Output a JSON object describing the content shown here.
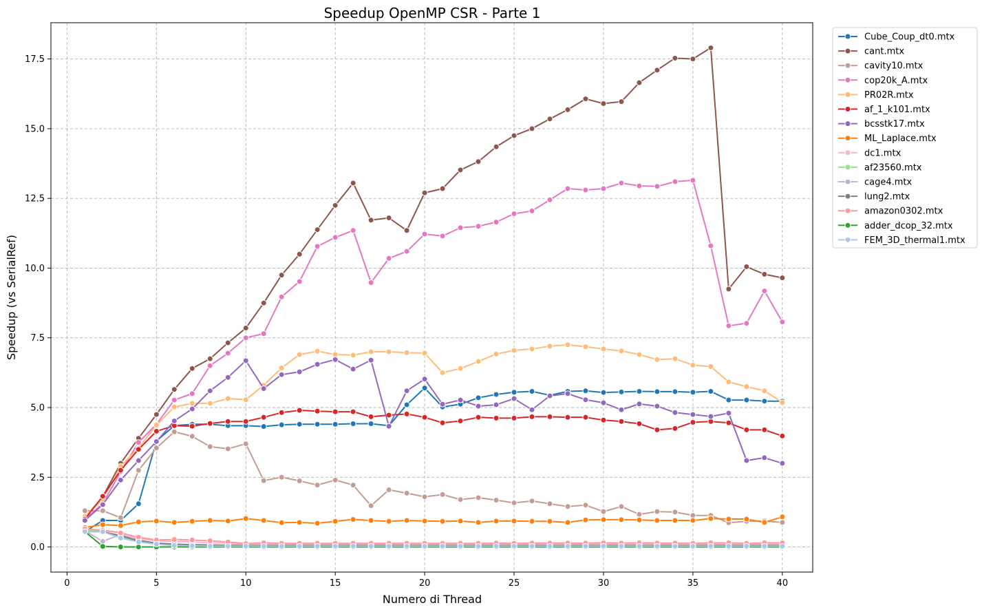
{
  "chart_data": {
    "type": "line",
    "title": "Speedup OpenMP CSR - Parte 1",
    "xlabel": "Numero di Thread",
    "ylabel": "Speedup (vs SerialRef)",
    "xlim": [
      -0.9,
      41.7
    ],
    "ylim": [
      -0.9,
      18.8
    ],
    "xticks": [
      0,
      5,
      10,
      15,
      20,
      25,
      30,
      35,
      40
    ],
    "xtick_labels": [
      "0",
      "5",
      "10",
      "15",
      "20",
      "25",
      "30",
      "35",
      "40"
    ],
    "yticks": [
      0,
      2.5,
      5,
      7.5,
      10,
      12.5,
      15,
      17.5
    ],
    "ytick_labels": [
      "0.0",
      "2.5",
      "5.0",
      "7.5",
      "10.0",
      "12.5",
      "15.0",
      "17.5"
    ],
    "grid": true,
    "legend_position": "outside-top-right",
    "x": [
      1,
      2,
      3,
      4,
      5,
      6,
      7,
      8,
      9,
      10,
      11,
      12,
      13,
      14,
      15,
      16,
      17,
      18,
      19,
      20,
      21,
      22,
      23,
      24,
      25,
      26,
      27,
      28,
      29,
      30,
      31,
      32,
      33,
      34,
      35,
      36,
      37,
      38,
      39,
      40
    ],
    "series": [
      {
        "name": "Cube_Coup_dt0.mtx",
        "color": "#1f77b4",
        "values": [
          0.55,
          0.95,
          0.95,
          1.55,
          3.8,
          4.35,
          4.4,
          4.4,
          4.35,
          4.35,
          4.32,
          4.38,
          4.4,
          4.4,
          4.4,
          4.42,
          4.42,
          4.35,
          5.1,
          5.7,
          5.02,
          5.12,
          5.35,
          5.47,
          5.55,
          5.58,
          5.44,
          5.58,
          5.6,
          5.54,
          5.56,
          5.58,
          5.57,
          5.57,
          5.55,
          5.58,
          5.27,
          5.27,
          5.23,
          5.23
        ]
      },
      {
        "name": "cant.mtx",
        "color": "#8c564b",
        "values": [
          1.05,
          1.8,
          3.0,
          3.9,
          4.75,
          5.65,
          6.4,
          6.75,
          7.32,
          7.85,
          8.75,
          9.75,
          10.5,
          11.38,
          12.25,
          13.05,
          11.72,
          11.8,
          11.35,
          12.7,
          12.85,
          13.52,
          13.82,
          14.35,
          14.75,
          15.0,
          15.35,
          15.68,
          16.07,
          15.9,
          15.97,
          16.65,
          17.1,
          17.53,
          17.5,
          17.9,
          9.25,
          10.05,
          9.78,
          9.65
        ]
      },
      {
        "name": "cavity10.mtx",
        "color": "#c49c94",
        "values": [
          1.3,
          1.3,
          1.05,
          2.75,
          3.55,
          4.13,
          3.97,
          3.6,
          3.52,
          3.7,
          2.38,
          2.5,
          2.37,
          2.22,
          2.4,
          2.22,
          1.48,
          2.05,
          1.93,
          1.8,
          1.88,
          1.7,
          1.77,
          1.68,
          1.58,
          1.65,
          1.55,
          1.45,
          1.5,
          1.27,
          1.45,
          1.17,
          1.27,
          1.25,
          1.13,
          1.13,
          0.87,
          0.92,
          0.93,
          0.88
        ]
      },
      {
        "name": "cop20k_A.mtx",
        "color": "#e377c2",
        "values": [
          1.0,
          1.55,
          2.7,
          3.75,
          4.4,
          5.27,
          5.5,
          6.5,
          6.95,
          7.5,
          7.65,
          8.97,
          9.52,
          10.78,
          11.1,
          11.35,
          9.48,
          10.35,
          10.6,
          11.22,
          11.15,
          11.45,
          11.5,
          11.65,
          11.95,
          12.05,
          12.45,
          12.85,
          12.8,
          12.85,
          13.05,
          12.95,
          12.93,
          13.1,
          13.15,
          10.8,
          7.93,
          8.02,
          9.18,
          8.07
        ]
      },
      {
        "name": "PR02R.mtx",
        "color": "#ffbb78",
        "values": [
          1.1,
          1.7,
          2.9,
          3.55,
          4.37,
          5.02,
          5.15,
          5.15,
          5.32,
          5.28,
          5.8,
          6.42,
          6.9,
          7.02,
          6.9,
          6.88,
          7.0,
          7.0,
          6.97,
          6.95,
          6.25,
          6.4,
          6.65,
          6.92,
          7.05,
          7.1,
          7.2,
          7.25,
          7.18,
          7.1,
          7.03,
          6.9,
          6.72,
          6.75,
          6.52,
          6.47,
          5.92,
          5.75,
          5.6,
          5.18
        ]
      },
      {
        "name": "af_1_k101.mtx",
        "color": "#d62728",
        "values": [
          1.0,
          1.82,
          2.75,
          3.5,
          4.15,
          4.35,
          4.33,
          4.43,
          4.5,
          4.5,
          4.65,
          4.82,
          4.9,
          4.87,
          4.85,
          4.85,
          4.67,
          4.73,
          4.77,
          4.65,
          4.45,
          4.52,
          4.65,
          4.62,
          4.62,
          4.67,
          4.67,
          4.65,
          4.65,
          4.55,
          4.5,
          4.42,
          4.2,
          4.25,
          4.47,
          4.5,
          4.45,
          4.2,
          4.2,
          3.98
        ]
      },
      {
        "name": "bcsstk17.mtx",
        "color": "#9467bd",
        "values": [
          0.95,
          1.52,
          2.4,
          3.1,
          3.78,
          4.52,
          4.95,
          5.6,
          6.08,
          6.68,
          5.68,
          6.18,
          6.28,
          6.55,
          6.72,
          6.38,
          6.7,
          4.33,
          5.6,
          6.02,
          5.12,
          5.27,
          5.05,
          5.1,
          5.32,
          4.92,
          5.42,
          5.5,
          5.28,
          5.17,
          4.92,
          5.13,
          5.05,
          4.82,
          4.75,
          4.68,
          4.8,
          3.1,
          3.2,
          3.0
        ]
      },
      {
        "name": "ML_Laplace.mtx",
        "color": "#ff7f0e",
        "values": [
          0.7,
          0.8,
          0.77,
          0.9,
          0.93,
          0.88,
          0.92,
          0.95,
          0.93,
          1.02,
          0.95,
          0.87,
          0.88,
          0.85,
          0.92,
          0.99,
          0.95,
          0.92,
          0.95,
          0.93,
          0.92,
          0.93,
          0.88,
          0.93,
          0.93,
          0.92,
          0.92,
          0.88,
          0.97,
          0.98,
          0.98,
          0.97,
          0.95,
          0.95,
          0.95,
          1.02,
          1.0,
          1.0,
          0.88,
          1.08
        ]
      },
      {
        "name": "dc1.mtx",
        "color": "#f7b6d2",
        "values": [
          0.6,
          0.6,
          0.52,
          0.3,
          0.22,
          0.2,
          0.18,
          0.15,
          0.13,
          0.1,
          0.1,
          0.1,
          0.1,
          0.1,
          0.1,
          0.1,
          0.1,
          0.1,
          0.1,
          0.1,
          0.1,
          0.1,
          0.1,
          0.1,
          0.1,
          0.1,
          0.1,
          0.1,
          0.1,
          0.1,
          0.1,
          0.1,
          0.1,
          0.1,
          0.1,
          0.1,
          0.1,
          0.1,
          0.1,
          0.1
        ]
      },
      {
        "name": "af23560.mtx",
        "color": "#98df8a",
        "values": [
          0.6,
          0.55,
          0.35,
          0.2,
          0.12,
          0.08,
          0.06,
          0.05,
          0.04,
          0.04,
          0.04,
          0.04,
          0.04,
          0.04,
          0.04,
          0.04,
          0.04,
          0.04,
          0.04,
          0.04,
          0.04,
          0.04,
          0.04,
          0.04,
          0.04,
          0.04,
          0.04,
          0.04,
          0.04,
          0.04,
          0.04,
          0.04,
          0.04,
          0.04,
          0.04,
          0.04,
          0.04,
          0.04,
          0.04,
          0.04
        ]
      },
      {
        "name": "cage4.mtx",
        "color": "#c5b0d5",
        "values": [
          0.58,
          0.2,
          0.45,
          0.25,
          0.13,
          0.1,
          0.08,
          0.07,
          0.06,
          0.06,
          0.06,
          0.06,
          0.06,
          0.06,
          0.06,
          0.06,
          0.06,
          0.06,
          0.06,
          0.06,
          0.06,
          0.06,
          0.06,
          0.06,
          0.06,
          0.06,
          0.06,
          0.06,
          0.06,
          0.06,
          0.06,
          0.06,
          0.06,
          0.06,
          0.06,
          0.06,
          0.06,
          0.06,
          0.06,
          0.06
        ]
      },
      {
        "name": "lung2.mtx",
        "color": "#7f7f7f",
        "values": [
          0.55,
          0.55,
          0.4,
          0.22,
          0.14,
          0.1,
          0.08,
          0.07,
          0.06,
          0.05,
          0.05,
          0.05,
          0.05,
          0.05,
          0.05,
          0.05,
          0.05,
          0.05,
          0.05,
          0.05,
          0.05,
          0.05,
          0.05,
          0.05,
          0.05,
          0.05,
          0.05,
          0.05,
          0.05,
          0.05,
          0.05,
          0.05,
          0.05,
          0.05,
          0.05,
          0.05,
          0.05,
          0.05,
          0.05,
          0.05
        ]
      },
      {
        "name": "amazon0302.mtx",
        "color": "#ff9896",
        "values": [
          0.65,
          0.6,
          0.5,
          0.35,
          0.25,
          0.27,
          0.25,
          0.22,
          0.18,
          0.12,
          0.15,
          0.13,
          0.13,
          0.13,
          0.13,
          0.13,
          0.13,
          0.13,
          0.13,
          0.13,
          0.13,
          0.13,
          0.13,
          0.14,
          0.13,
          0.14,
          0.14,
          0.14,
          0.14,
          0.15,
          0.14,
          0.15,
          0.14,
          0.14,
          0.13,
          0.15,
          0.15,
          0.13,
          0.15,
          0.15
        ]
      },
      {
        "name": "adder_dcop_32.mtx",
        "color": "#2ca02c",
        "values": [
          0.55,
          0.02,
          0.0,
          0.0,
          0.0,
          0.0,
          0.0,
          0.0,
          0.0,
          0.0,
          0.0,
          0.0,
          0.0,
          0.0,
          0.0,
          0.0,
          0.0,
          0.0,
          0.0,
          0.0,
          0.0,
          0.0,
          0.0,
          0.0,
          0.0,
          0.0,
          0.0,
          0.0,
          0.0,
          0.0,
          0.0,
          0.0,
          0.0,
          0.0,
          0.0,
          0.0,
          0.0,
          0.0,
          0.0,
          0.0
        ]
      },
      {
        "name": "FEM_3D_thermal1.mtx",
        "color": "#aec7e8",
        "values": [
          0.55,
          0.55,
          0.32,
          0.18,
          0.1,
          0.05,
          0.04,
          0.03,
          0.03,
          0.03,
          0.03,
          0.03,
          0.03,
          0.03,
          0.03,
          0.03,
          0.03,
          0.03,
          0.03,
          0.03,
          0.03,
          0.03,
          0.03,
          0.03,
          0.03,
          0.03,
          0.03,
          0.03,
          0.03,
          0.03,
          0.03,
          0.03,
          0.03,
          0.03,
          0.03,
          0.03,
          0.03,
          0.03,
          0.03,
          0.03
        ]
      }
    ]
  }
}
